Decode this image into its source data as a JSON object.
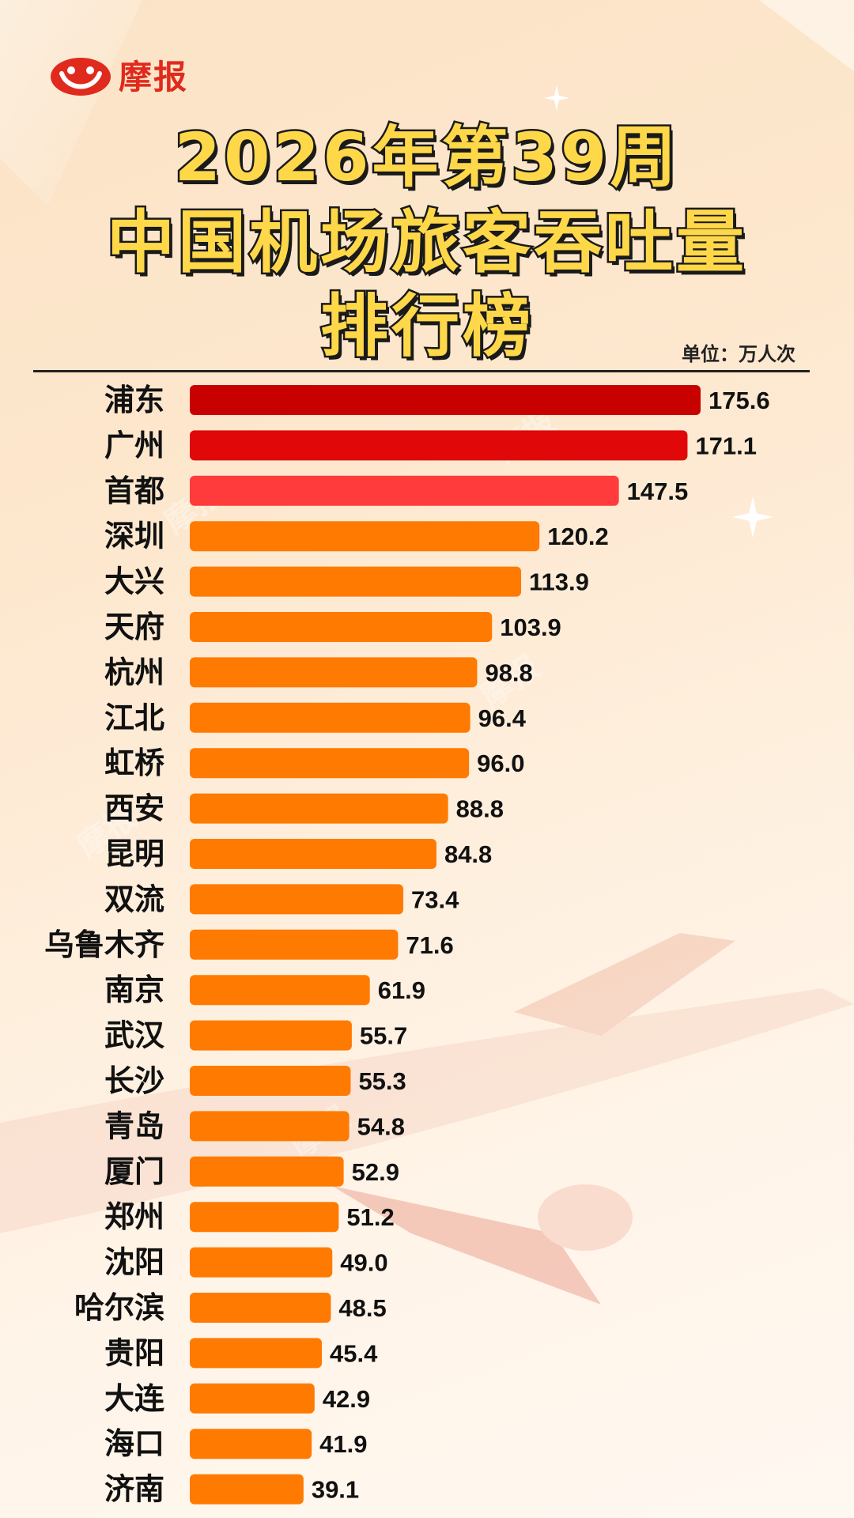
{
  "logo": {
    "text": "摩报",
    "icon": "mobao-logo-icon"
  },
  "title": {
    "line1": "2026年第39周",
    "line2": "中国机场旅客吞吐量",
    "line3": "排行榜"
  },
  "unit_label": "单位：万人次",
  "watermark": "摩报",
  "colors": {
    "rank1": "#c80000",
    "rank2": "#e00808",
    "rank3": "#ff3b3b",
    "default_bar": "#ff7a00",
    "title_fill": "#ffd84a",
    "title_stroke": "#1a1a1a",
    "brand": "#e02a1e"
  },
  "chart_data": {
    "type": "bar",
    "orientation": "horizontal",
    "title": "2026年第39周 中国机场旅客吞吐量排行榜",
    "unit": "单位：万人次",
    "categories": [
      "浦东",
      "广州",
      "首都",
      "深圳",
      "大兴",
      "天府",
      "杭州",
      "江北",
      "虹桥",
      "西安",
      "昆明",
      "双流",
      "乌鲁木齐",
      "南京",
      "武汉",
      "长沙",
      "青岛",
      "厦门",
      "郑州",
      "沈阳",
      "哈尔滨",
      "贵阳",
      "大连",
      "海口",
      "济南"
    ],
    "values": [
      175.6,
      171.1,
      147.5,
      120.2,
      113.9,
      103.9,
      98.8,
      96.4,
      96.0,
      88.8,
      84.8,
      73.4,
      71.6,
      61.9,
      55.7,
      55.3,
      54.8,
      52.9,
      51.2,
      49.0,
      48.5,
      45.4,
      42.9,
      41.9,
      39.1
    ],
    "value_labels": [
      "175.6",
      "171.1",
      "147.5",
      "120.2",
      "113.9",
      "103.9",
      "98.8",
      "96.4",
      "96.0",
      "88.8",
      "84.8",
      "73.4",
      "71.6",
      "61.9",
      "55.7",
      "55.3",
      "54.8",
      "52.9",
      "51.2",
      "49.0",
      "48.5",
      "45.4",
      "42.9",
      "41.9",
      "39.1"
    ],
    "xlim": [
      0,
      175.6
    ],
    "grid": false,
    "legend": "none"
  }
}
